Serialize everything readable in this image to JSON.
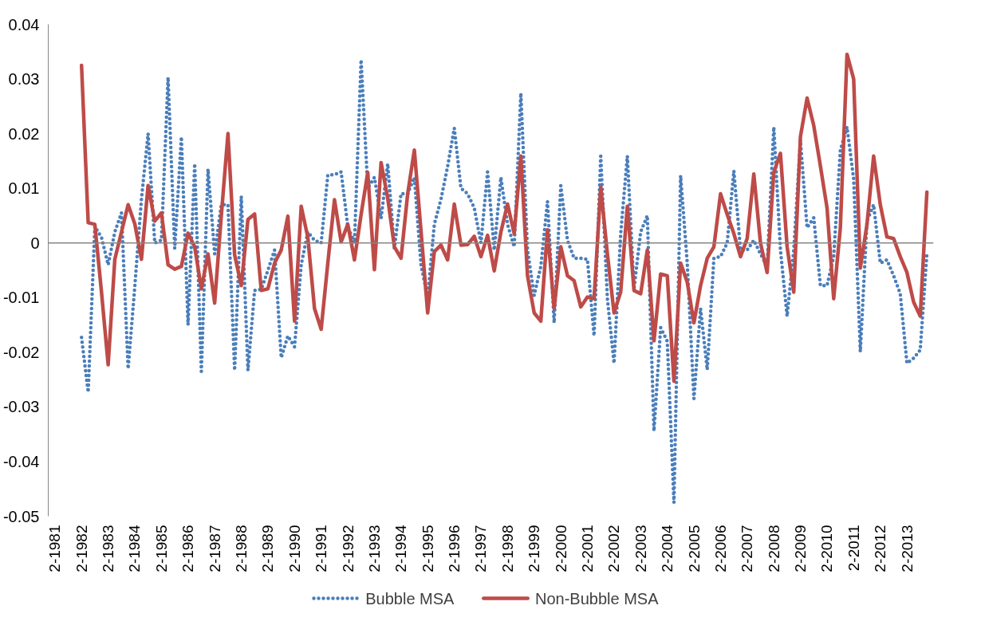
{
  "chart_data": {
    "type": "line",
    "categories": [
      "2-1981",
      null,
      null,
      null,
      "2-1982",
      null,
      null,
      null,
      "2-1983",
      null,
      null,
      null,
      "2-1984",
      null,
      null,
      null,
      "2-1985",
      null,
      null,
      null,
      "2-1986",
      null,
      null,
      null,
      "2-1987",
      null,
      null,
      null,
      "2-1988",
      null,
      null,
      null,
      "2-1989",
      null,
      null,
      null,
      "2-1990",
      null,
      null,
      null,
      "2-1991",
      null,
      null,
      null,
      "2-1992",
      null,
      null,
      null,
      "2-1993",
      null,
      null,
      null,
      "2-1994",
      null,
      null,
      null,
      "2-1995",
      null,
      null,
      null,
      "2-1996",
      null,
      null,
      null,
      "2-1997",
      null,
      null,
      null,
      "2-1998",
      null,
      null,
      null,
      "2-1999",
      null,
      null,
      null,
      "2-2000",
      null,
      null,
      null,
      "2-2001",
      null,
      null,
      null,
      "2-2002",
      null,
      null,
      null,
      "2-2003",
      null,
      null,
      null,
      "2-2004",
      null,
      null,
      null,
      "2-2005",
      null,
      null,
      null,
      "2-2006",
      null,
      null,
      null,
      "2-2007",
      null,
      null,
      null,
      "2-2008",
      null,
      null,
      null,
      "2-2009",
      null,
      null,
      null,
      "2-2010",
      null,
      null,
      null,
      "2-2011",
      null,
      null,
      null,
      "2-2012",
      null,
      null,
      null,
      "2-2013",
      null,
      null,
      null
    ],
    "series": [
      {
        "name": "Bubble MSA",
        "color": "#4a7ebb",
        "line_style": "dotted",
        "values": [
          null,
          null,
          null,
          null,
          -0.0173,
          -0.0273,
          0.003,
          0.001,
          -0.004,
          0.002,
          0.0055,
          -0.023,
          -0.008,
          0.008,
          0.02,
          0.0,
          0.0005,
          0.0303,
          -0.001,
          0.0194,
          -0.015,
          0.0145,
          -0.0235,
          0.0135,
          -0.002,
          0.007,
          0.007,
          -0.0233,
          0.0085,
          -0.0233,
          -0.0087,
          -0.0085,
          -0.005,
          -0.0013,
          -0.021,
          -0.017,
          -0.019,
          -0.004,
          0.002,
          0.0005,
          0.0,
          0.0124,
          0.0125,
          0.013,
          0.003,
          0.0,
          0.0335,
          0.01,
          0.012,
          0.0045,
          0.0145,
          -0.001,
          0.009,
          0.009,
          0.012,
          -0.004,
          -0.01,
          0.0034,
          0.008,
          0.014,
          0.021,
          0.01,
          0.009,
          0.0064,
          0.0,
          0.013,
          -0.0013,
          0.012,
          0.0034,
          -0.0007,
          0.0274,
          -0.0013,
          -0.0096,
          -0.0043,
          0.0076,
          -0.0146,
          0.0105,
          0.0005,
          -0.0028,
          -0.0028,
          -0.003,
          -0.017,
          0.0159,
          -0.0102,
          -0.022,
          0.0017,
          0.0159,
          -0.0084,
          0.002,
          0.005,
          -0.0344,
          -0.0155,
          -0.018,
          -0.0475,
          0.0123,
          -0.0037,
          -0.0285,
          -0.012,
          -0.0232,
          -0.0028,
          -0.0025,
          0.0,
          0.0132,
          -0.0013,
          -0.0013,
          0.0005,
          -0.002,
          -0.0043,
          0.0212,
          -0.0013,
          -0.0134,
          -0.0013,
          0.0188,
          0.0028,
          0.0046,
          -0.0078,
          -0.0078,
          -0.0025,
          0.017,
          0.0212,
          0.0117,
          -0.0199,
          0.004,
          0.007,
          -0.0037,
          -0.0031,
          -0.006,
          -0.0093,
          -0.022,
          -0.0211,
          -0.0196,
          -0.0019
        ]
      },
      {
        "name": "Non-Bubble MSA",
        "color": "#be4b48",
        "line_style": "solid",
        "values": [
          null,
          null,
          null,
          null,
          0.0325,
          0.0037,
          0.0034,
          -0.009,
          -0.0223,
          -0.003,
          0.002,
          0.007,
          0.0035,
          -0.003,
          0.0105,
          0.004,
          0.0055,
          -0.004,
          -0.0048,
          -0.0043,
          0.0018,
          -0.0007,
          -0.0084,
          -0.002,
          -0.011,
          0.005,
          0.02,
          -0.0022,
          -0.0078,
          0.0043,
          0.0053,
          -0.0087,
          -0.0084,
          -0.0037,
          -0.0013,
          0.0049,
          -0.0143,
          0.0067,
          0.001,
          -0.012,
          -0.0158,
          -0.0037,
          0.0079,
          0.0002,
          0.0034,
          -0.0031,
          0.0052,
          0.0129,
          -0.0049,
          0.0147,
          0.0082,
          -0.0007,
          -0.0028,
          0.009,
          0.017,
          0.0022,
          -0.0128,
          -0.0016,
          -0.0004,
          -0.0031,
          0.0071,
          -0.0004,
          -0.0003,
          0.0012,
          -0.0025,
          0.0014,
          -0.0051,
          0.002,
          0.0071,
          0.0017,
          0.0159,
          -0.006,
          -0.0128,
          -0.0143,
          0.0024,
          -0.012,
          -0.0007,
          -0.006,
          -0.0069,
          -0.0117,
          -0.0099,
          -0.0102,
          0.0102,
          -0.002,
          -0.0128,
          -0.009,
          0.0067,
          -0.0087,
          -0.0093,
          -0.0013,
          -0.0179,
          -0.0057,
          -0.006,
          -0.0253,
          -0.0037,
          -0.0072,
          -0.0146,
          -0.0078,
          -0.0028,
          -0.0007,
          0.009,
          0.0052,
          0.0017,
          -0.0025,
          0.0008,
          0.0126,
          0,
          -0.0054,
          0.0129,
          0.0164,
          -0.0007,
          -0.009,
          0.0194,
          0.0265,
          0.0215,
          0.0141,
          0.0064,
          -0.0102,
          0.0028,
          0.0345,
          0.03,
          -0.0046,
          0.0034,
          0.0159,
          0.007,
          0.0011,
          0.0008,
          -0.0025,
          -0.0054,
          -0.0108,
          -0.0134,
          0.0093
        ]
      }
    ],
    "ylim": [
      -0.05,
      0.04
    ],
    "yticks": [
      -0.05,
      -0.04,
      -0.03,
      -0.02,
      -0.01,
      0,
      0.01,
      0.02,
      0.03,
      0.04
    ],
    "legend": "bottom"
  }
}
